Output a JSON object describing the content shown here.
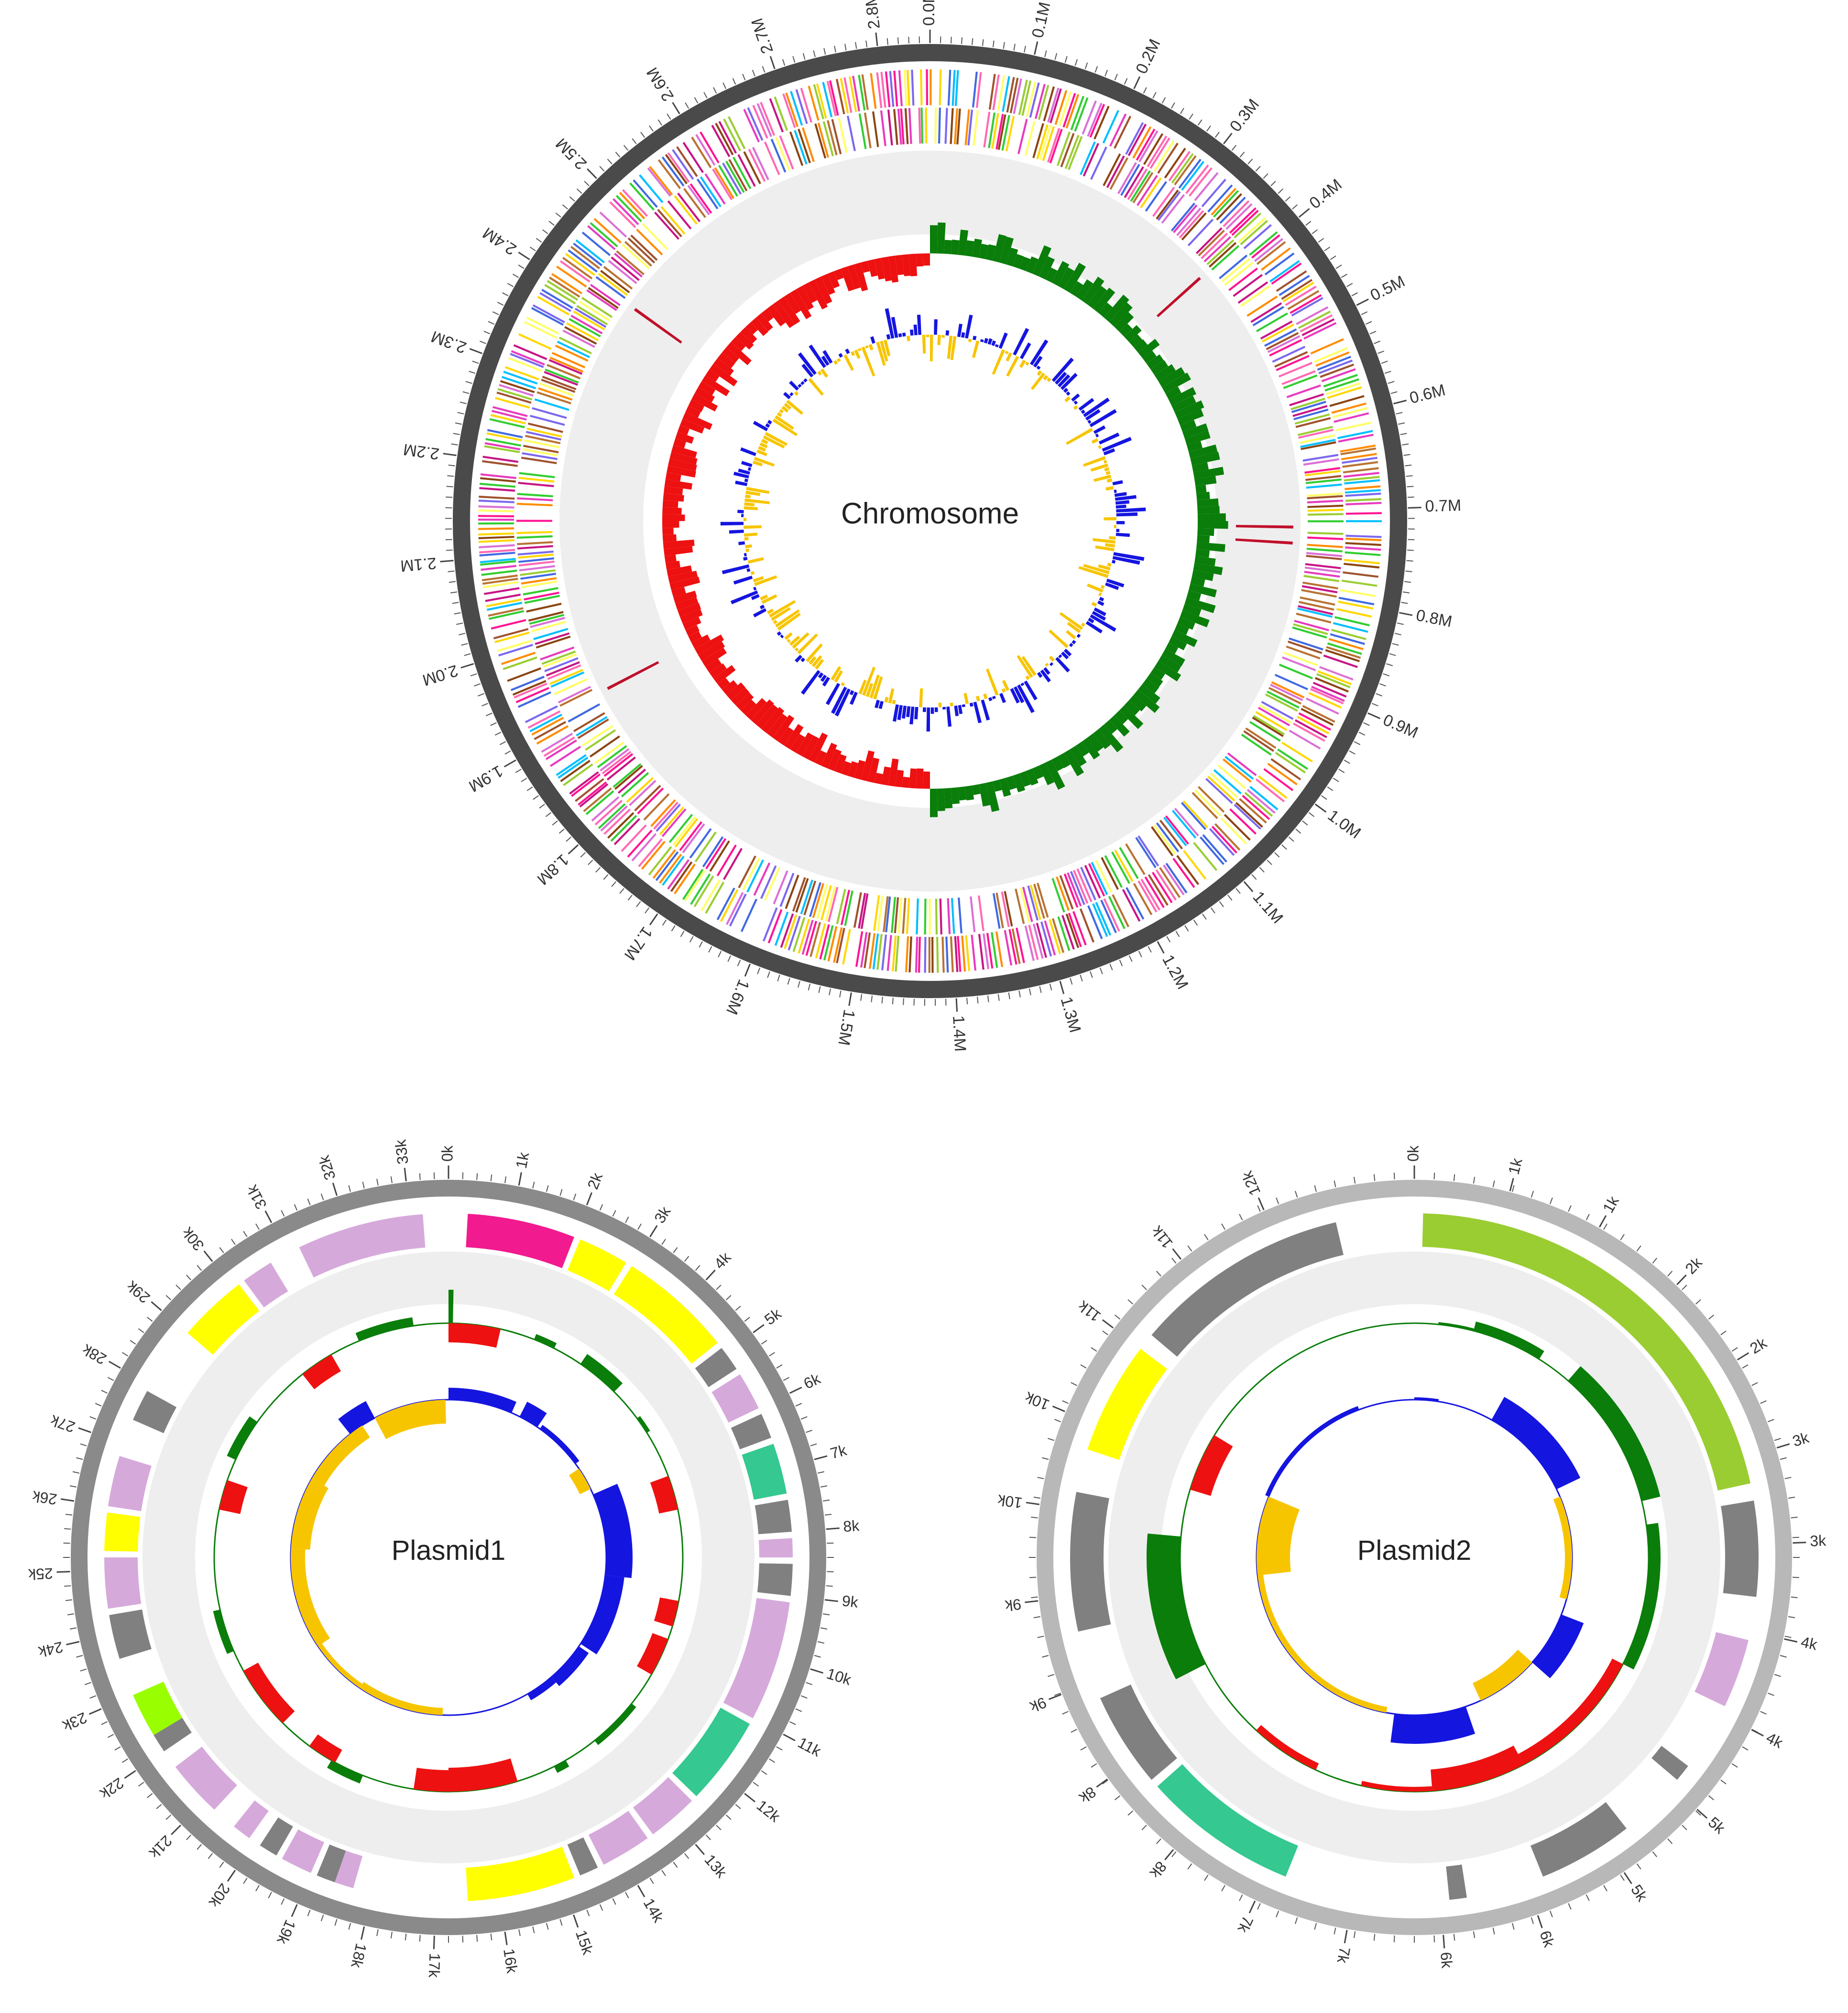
{
  "figure": {
    "chromosome": {
      "label": "Chromosome",
      "genome_length_M": 2.85,
      "tick_labels": [
        "0.0M",
        "0.1M",
        "0.2M",
        "0.3M",
        "0.4M",
        "0.5M",
        "0.6M",
        "0.7M",
        "0.8M",
        "0.9M",
        "1.0M",
        "1.1M",
        "1.2M",
        "1.3M",
        "1.4M",
        "1.5M",
        "1.6M",
        "1.7M",
        "1.8M",
        "1.9M",
        "2.0M",
        "2.1M",
        "2.2M",
        "2.3M",
        "2.4M",
        "2.5M",
        "2.6M",
        "2.7M",
        "2.8M"
      ],
      "tick_values": [
        0,
        0.1,
        0.2,
        0.3,
        0.4,
        0.5,
        0.6,
        0.7,
        0.8,
        0.9,
        1.0,
        1.1,
        1.2,
        1.3,
        1.4,
        1.5,
        1.6,
        1.7,
        1.8,
        1.9,
        2.0,
        2.1,
        2.2,
        2.3,
        2.4,
        2.5,
        2.6,
        2.7,
        2.8
      ],
      "rrna_positions_M": [
        0.38,
        0.72,
        0.74,
        1.92,
        2.42
      ],
      "skew_crossings_M": [
        0.0,
        1.42
      ]
    },
    "plasmid1": {
      "label": "Plasmid1",
      "length_k": 33.6,
      "tick_labels": [
        "0k",
        "1k",
        "2k",
        "3k",
        "4k",
        "5k",
        "6k",
        "7k",
        "8k",
        "9k",
        "10k",
        "11k",
        "12k",
        "13k",
        "14k",
        "15k",
        "16k",
        "17k",
        "18k",
        "19k",
        "20k",
        "21k",
        "22k",
        "23k",
        "24k",
        "25k",
        "26k",
        "27k",
        "28k",
        "29k",
        "30k",
        "31k",
        "32k",
        "33k"
      ],
      "tick_values": [
        0,
        1,
        2,
        3,
        4,
        5,
        6,
        7,
        8,
        9,
        10,
        11,
        12,
        13,
        14,
        15,
        16,
        17,
        18,
        19,
        20,
        21,
        22,
        23,
        24,
        25,
        26,
        27,
        28,
        29,
        30,
        31,
        32,
        33
      ],
      "genes": [
        {
          "start": 0.3,
          "end": 2.0,
          "color": "#f21a8f"
        },
        {
          "start": 2.1,
          "end": 2.9,
          "color": "#ffff00"
        },
        {
          "start": 3.0,
          "end": 4.8,
          "color": "#ffff00"
        },
        {
          "start": 4.9,
          "end": 5.3,
          "color": "#808080"
        },
        {
          "start": 5.4,
          "end": 6.0,
          "color": "#d6a9db"
        },
        {
          "start": 6.1,
          "end": 6.5,
          "color": "#808080"
        },
        {
          "start": 6.6,
          "end": 7.4,
          "color": "#35c890"
        },
        {
          "start": 7.5,
          "end": 8.0,
          "color": "#808080"
        },
        {
          "start": 8.1,
          "end": 8.4,
          "color": "#d6a9db"
        },
        {
          "start": 8.5,
          "end": 9.0,
          "color": "#808080"
        },
        {
          "start": 9.1,
          "end": 11.0,
          "color": "#d6a9db"
        },
        {
          "start": 11.1,
          "end": 12.5,
          "color": "#35c890"
        },
        {
          "start": 12.6,
          "end": 13.4,
          "color": "#d6a9db"
        },
        {
          "start": 13.5,
          "end": 14.3,
          "color": "#d6a9db"
        },
        {
          "start": 14.4,
          "end": 14.7,
          "color": "#808080"
        },
        {
          "start": 14.8,
          "end": 16.5,
          "color": "#ffff00"
        },
        {
          "start": 18.3,
          "end": 18.6,
          "color": "#d6a9db"
        },
        {
          "start": 18.6,
          "end": 18.9,
          "color": "#808080"
        },
        {
          "start": 19.0,
          "end": 19.5,
          "color": "#d6a9db"
        },
        {
          "start": 19.6,
          "end": 19.9,
          "color": "#808080"
        },
        {
          "start": 20.1,
          "end": 20.4,
          "color": "#d6a9db"
        },
        {
          "start": 20.8,
          "end": 21.7,
          "color": "#d6a9db"
        },
        {
          "start": 22.0,
          "end": 22.3,
          "color": "#808080"
        },
        {
          "start": 22.3,
          "end": 23.0,
          "color": "#99ff00"
        },
        {
          "start": 23.6,
          "end": 24.3,
          "color": "#808080"
        },
        {
          "start": 24.4,
          "end": 25.2,
          "color": "#d6a9db"
        },
        {
          "start": 25.3,
          "end": 25.9,
          "color": "#ffff00"
        },
        {
          "start": 26.0,
          "end": 26.8,
          "color": "#d6a9db"
        },
        {
          "start": 27.4,
          "end": 27.9,
          "color": "#808080"
        },
        {
          "start": 29.0,
          "end": 30.1,
          "color": "#ffff00"
        },
        {
          "start": 30.2,
          "end": 30.7,
          "color": "#d6a9db"
        },
        {
          "start": 31.2,
          "end": 33.2,
          "color": "#d6a9db"
        }
      ]
    },
    "plasmid2": {
      "label": "Plasmid2",
      "length_k": 12.3,
      "tick_labels": [
        "0k",
        "1k",
        "1k",
        "2k",
        "2k",
        "3k",
        "3k",
        "4k",
        "4k",
        "5k",
        "5k",
        "6k",
        "6k",
        "7k",
        "7k",
        "8k",
        "8k",
        "9k",
        "9k",
        "10k",
        "10k",
        "11k",
        "11k",
        "12k"
      ],
      "tick_values": [
        0,
        0.5,
        1,
        1.5,
        2,
        2.5,
        3,
        3.5,
        4,
        4.5,
        5,
        5.5,
        6,
        6.5,
        7,
        7.5,
        8,
        8.5,
        9,
        9.5,
        10,
        10.5,
        11,
        11.5
      ],
      "genes": [
        {
          "start": 0.05,
          "end": 2.65,
          "color": "#9acd32"
        },
        {
          "start": 2.75,
          "end": 3.3,
          "color": "#808080"
        },
        {
          "start": 3.55,
          "end": 3.95,
          "color": "#d6a9db"
        },
        {
          "start": 4.35,
          "end": 4.45,
          "color": "#808080"
        },
        {
          "start": 4.85,
          "end": 5.4,
          "color": "#808080"
        },
        {
          "start": 5.85,
          "end": 5.95,
          "color": "#808080"
        },
        {
          "start": 6.9,
          "end": 7.8,
          "color": "#35c890"
        },
        {
          "start": 7.85,
          "end": 8.4,
          "color": "#808080"
        },
        {
          "start": 8.8,
          "end": 9.6,
          "color": "#808080"
        },
        {
          "start": 9.85,
          "end": 10.5,
          "color": "#ffff00"
        },
        {
          "start": 10.6,
          "end": 11.85,
          "color": "#808080"
        }
      ]
    }
  },
  "colors": {
    "backbone_chromosome": "#4a4a4a",
    "backbone_plasmid1": "#8a8a8a",
    "backbone_plasmid2": "#b8b8b8",
    "gc_plus": "#0a7d0a",
    "gc_minus": "#ee1111",
    "skew_plus": "#1515e0",
    "skew_minus": "#f7c500",
    "track_bg": "#eeeeee",
    "rrna": "#c0102a"
  }
}
